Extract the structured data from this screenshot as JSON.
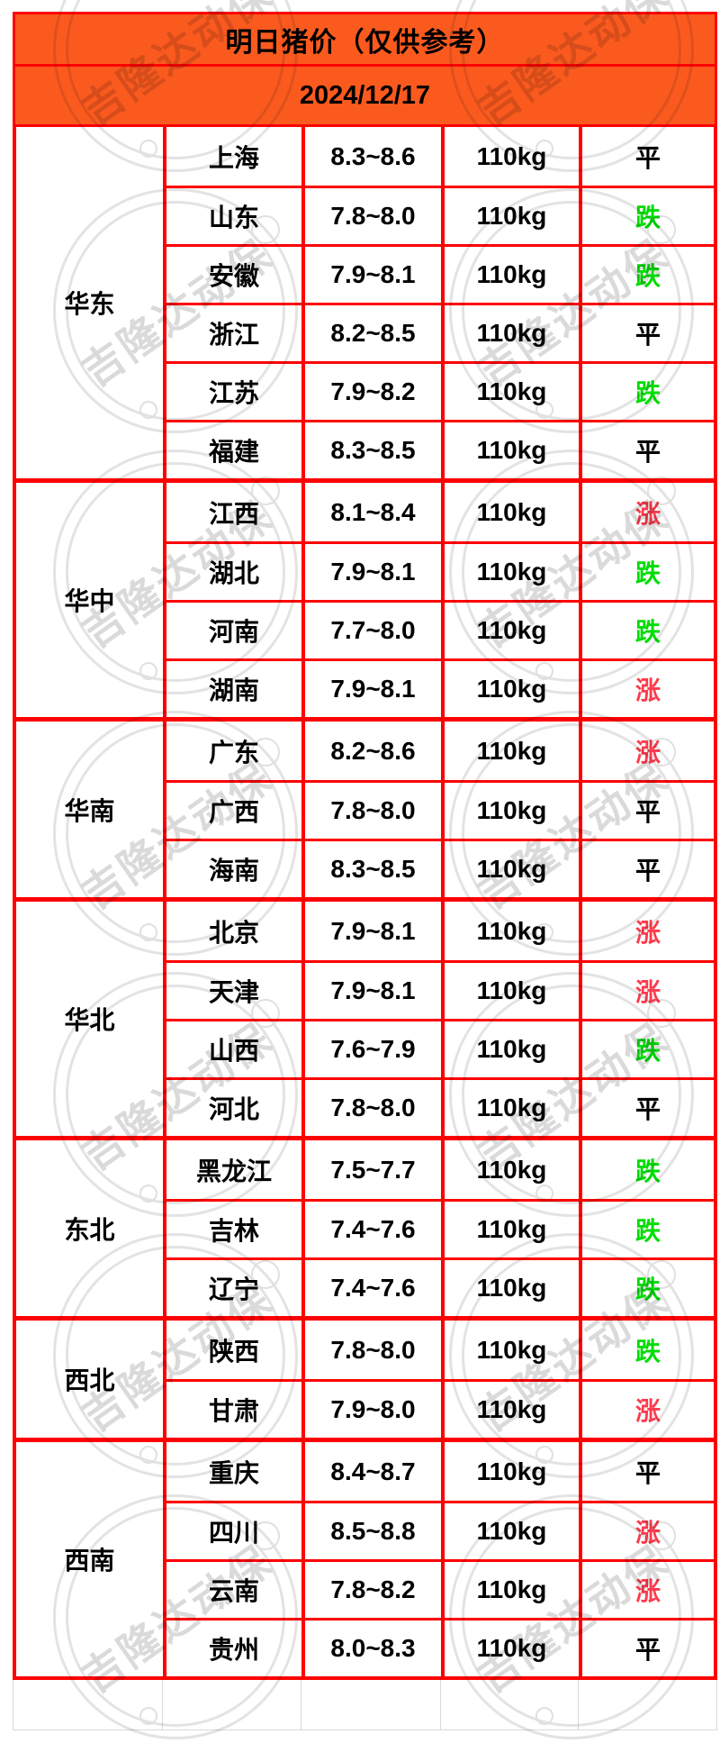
{
  "header": {
    "title": "明日猪价（仅供参考）",
    "date": "2024/12/17"
  },
  "watermark": {
    "text": "吉隆达动保"
  },
  "colors": {
    "accent_orange": "#FB5A1E",
    "border_red": "#FE0000",
    "trend_up_red": "#FB3B4C",
    "trend_down_green": "#00DC05",
    "trend_flat_black": "#000000"
  },
  "regions": [
    {
      "name": "华东",
      "rows": [
        {
          "province": "上海",
          "price": "8.3~8.6",
          "weight": "110kg",
          "trend": "平",
          "trend_type": "flat"
        },
        {
          "province": "山东",
          "price": "7.8~8.0",
          "weight": "110kg",
          "trend": "跌",
          "trend_type": "down"
        },
        {
          "province": "安徽",
          "price": "7.9~8.1",
          "weight": "110kg",
          "trend": "跌",
          "trend_type": "down"
        },
        {
          "province": "浙江",
          "price": "8.2~8.5",
          "weight": "110kg",
          "trend": "平",
          "trend_type": "flat"
        },
        {
          "province": "江苏",
          "price": "7.9~8.2",
          "weight": "110kg",
          "trend": "跌",
          "trend_type": "down"
        },
        {
          "province": "福建",
          "price": "8.3~8.5",
          "weight": "110kg",
          "trend": "平",
          "trend_type": "flat"
        }
      ]
    },
    {
      "name": "华中",
      "rows": [
        {
          "province": "江西",
          "price": "8.1~8.4",
          "weight": "110kg",
          "trend": "涨",
          "trend_type": "up"
        },
        {
          "province": "湖北",
          "price": "7.9~8.1",
          "weight": "110kg",
          "trend": "跌",
          "trend_type": "down"
        },
        {
          "province": "河南",
          "price": "7.7~8.0",
          "weight": "110kg",
          "trend": "跌",
          "trend_type": "down"
        },
        {
          "province": "湖南",
          "price": "7.9~8.1",
          "weight": "110kg",
          "trend": "涨",
          "trend_type": "up"
        }
      ]
    },
    {
      "name": "华南",
      "rows": [
        {
          "province": "广东",
          "price": "8.2~8.6",
          "weight": "110kg",
          "trend": "涨",
          "trend_type": "up"
        },
        {
          "province": "广西",
          "price": "7.8~8.0",
          "weight": "110kg",
          "trend": "平",
          "trend_type": "flat"
        },
        {
          "province": "海南",
          "price": "8.3~8.5",
          "weight": "110kg",
          "trend": "平",
          "trend_type": "flat"
        }
      ]
    },
    {
      "name": "华北",
      "rows": [
        {
          "province": "北京",
          "price": "7.9~8.1",
          "weight": "110kg",
          "trend": "涨",
          "trend_type": "up"
        },
        {
          "province": "天津",
          "price": "7.9~8.1",
          "weight": "110kg",
          "trend": "涨",
          "trend_type": "up"
        },
        {
          "province": "山西",
          "price": "7.6~7.9",
          "weight": "110kg",
          "trend": "跌",
          "trend_type": "down"
        },
        {
          "province": "河北",
          "price": "7.8~8.0",
          "weight": "110kg",
          "trend": "平",
          "trend_type": "flat"
        }
      ]
    },
    {
      "name": "东北",
      "rows": [
        {
          "province": "黑龙江",
          "price": "7.5~7.7",
          "weight": "110kg",
          "trend": "跌",
          "trend_type": "down"
        },
        {
          "province": "吉林",
          "price": "7.4~7.6",
          "weight": "110kg",
          "trend": "跌",
          "trend_type": "down"
        },
        {
          "province": "辽宁",
          "price": "7.4~7.6",
          "weight": "110kg",
          "trend": "跌",
          "trend_type": "down"
        }
      ]
    },
    {
      "name": "西北",
      "rows": [
        {
          "province": "陕西",
          "price": "7.8~8.0",
          "weight": "110kg",
          "trend": "跌",
          "trend_type": "down"
        },
        {
          "province": "甘肃",
          "price": "7.9~8.0",
          "weight": "110kg",
          "trend": "涨",
          "trend_type": "up"
        }
      ]
    },
    {
      "name": "西南",
      "rows": [
        {
          "province": "重庆",
          "price": "8.4~8.7",
          "weight": "110kg",
          "trend": "平",
          "trend_type": "flat"
        },
        {
          "province": "四川",
          "price": "8.5~8.8",
          "weight": "110kg",
          "trend": "涨",
          "trend_type": "up"
        },
        {
          "province": "云南",
          "price": "7.8~8.2",
          "weight": "110kg",
          "trend": "涨",
          "trend_type": "up"
        },
        {
          "province": "贵州",
          "price": "8.0~8.3",
          "weight": "110kg",
          "trend": "平",
          "trend_type": "flat"
        }
      ]
    }
  ]
}
